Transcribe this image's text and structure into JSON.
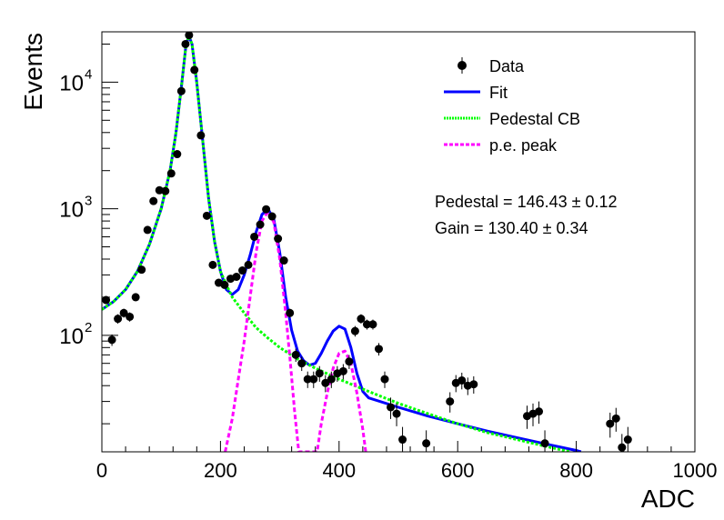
{
  "chart_data": {
    "type": "scatter",
    "title": "",
    "xlabel": "ADC",
    "ylabel": "Events",
    "xlim": [
      0,
      1000
    ],
    "ylim": [
      12,
      25000
    ],
    "yscale": "log",
    "grid": false,
    "legend_position": "top-right",
    "x_ticks": [
      0,
      200,
      400,
      600,
      800,
      1000
    ],
    "y_ticks": [
      {
        "value": 100,
        "base": "10",
        "exp": "2"
      },
      {
        "value": 1000,
        "base": "10",
        "exp": "3"
      },
      {
        "value": 10000,
        "base": "10",
        "exp": "4"
      }
    ],
    "legend": [
      {
        "label": "Data",
        "style": "marker",
        "color": "#000000"
      },
      {
        "label": "Fit",
        "style": "solid",
        "color": "#0000ff"
      },
      {
        "label": "Pedestal CB",
        "style": "dotted",
        "color": "#00ff00"
      },
      {
        "label": "p.e. peak",
        "style": "dashed",
        "color": "#ff00ff"
      }
    ],
    "annotations": [
      "Pedestal = 146.43 ± 0.12",
      "Gain = 130.40 ± 0.34"
    ],
    "series": [
      {
        "name": "Data",
        "color": "#000000",
        "points": [
          [
            7,
            190
          ],
          [
            17,
            92
          ],
          [
            27,
            135
          ],
          [
            37,
            150
          ],
          [
            47,
            140
          ],
          [
            57,
            200
          ],
          [
            67,
            330
          ],
          [
            77,
            680
          ],
          [
            87,
            1150
          ],
          [
            97,
            1400
          ],
          [
            107,
            1380
          ],
          [
            117,
            1900
          ],
          [
            127,
            2700
          ],
          [
            134,
            8500
          ],
          [
            141,
            20000
          ],
          [
            147,
            23500
          ],
          [
            156,
            12500
          ],
          [
            167,
            3800
          ],
          [
            177,
            880
          ],
          [
            187,
            360
          ],
          [
            197,
            260
          ],
          [
            207,
            250
          ],
          [
            217,
            280
          ],
          [
            227,
            290
          ],
          [
            237,
            325
          ],
          [
            247,
            360
          ],
          [
            257,
            600
          ],
          [
            267,
            750
          ],
          [
            277,
            990
          ],
          [
            287,
            870
          ],
          [
            297,
            580
          ],
          [
            307,
            390
          ],
          [
            317,
            150
          ],
          [
            327,
            70
          ],
          [
            337,
            60
          ],
          [
            347,
            45
          ],
          [
            357,
            45
          ],
          [
            367,
            50
          ],
          [
            377,
            42
          ],
          [
            387,
            45
          ],
          [
            397,
            50
          ],
          [
            407,
            52
          ],
          [
            417,
            62
          ],
          [
            427,
            108
          ],
          [
            437,
            135
          ],
          [
            447,
            122
          ],
          [
            457,
            122
          ],
          [
            467,
            78
          ],
          [
            477,
            45
          ],
          [
            487,
            27
          ],
          [
            497,
            24
          ],
          [
            507,
            15
          ],
          [
            547,
            14
          ],
          [
            587,
            30
          ],
          [
            597,
            42
          ],
          [
            607,
            44
          ],
          [
            617,
            40
          ],
          [
            627,
            41
          ],
          [
            717,
            23
          ],
          [
            727,
            24
          ],
          [
            737,
            25
          ],
          [
            747,
            14
          ],
          [
            857,
            20
          ],
          [
            867,
            22
          ],
          [
            877,
            13
          ],
          [
            887,
            15
          ]
        ]
      },
      {
        "name": "Fit",
        "color": "#0000ff",
        "points": [
          [
            0,
            160
          ],
          [
            20,
            185
          ],
          [
            40,
            230
          ],
          [
            60,
            320
          ],
          [
            80,
            520
          ],
          [
            100,
            1000
          ],
          [
            115,
            2000
          ],
          [
            125,
            4000
          ],
          [
            135,
            10000
          ],
          [
            142,
            20000
          ],
          [
            147,
            23000
          ],
          [
            152,
            20000
          ],
          [
            160,
            10000
          ],
          [
            170,
            3500
          ],
          [
            180,
            1200
          ],
          [
            190,
            550
          ],
          [
            200,
            320
          ],
          [
            210,
            230
          ],
          [
            220,
            210
          ],
          [
            230,
            230
          ],
          [
            240,
            300
          ],
          [
            250,
            430
          ],
          [
            260,
            650
          ],
          [
            270,
            900
          ],
          [
            280,
            1000
          ],
          [
            290,
            820
          ],
          [
            300,
            450
          ],
          [
            310,
            200
          ],
          [
            320,
            110
          ],
          [
            330,
            75
          ],
          [
            340,
            63
          ],
          [
            350,
            58
          ],
          [
            360,
            60
          ],
          [
            370,
            72
          ],
          [
            380,
            90
          ],
          [
            390,
            108
          ],
          [
            400,
            118
          ],
          [
            410,
            112
          ],
          [
            420,
            80
          ],
          [
            430,
            50
          ],
          [
            440,
            36
          ],
          [
            450,
            32
          ],
          [
            500,
            27
          ],
          [
            550,
            23
          ],
          [
            600,
            20
          ],
          [
            650,
            17.5
          ],
          [
            700,
            15.5
          ],
          [
            750,
            13.8
          ],
          [
            800,
            12.3
          ],
          [
            808,
            12
          ]
        ]
      },
      {
        "name": "Pedestal CB",
        "color": "#00ff00",
        "points": [
          [
            0,
            160
          ],
          [
            20,
            185
          ],
          [
            40,
            230
          ],
          [
            60,
            320
          ],
          [
            80,
            520
          ],
          [
            100,
            1000
          ],
          [
            115,
            2000
          ],
          [
            125,
            4000
          ],
          [
            135,
            10000
          ],
          [
            142,
            20000
          ],
          [
            147,
            23000
          ],
          [
            152,
            20000
          ],
          [
            160,
            10000
          ],
          [
            170,
            3500
          ],
          [
            180,
            1200
          ],
          [
            190,
            550
          ],
          [
            200,
            320
          ],
          [
            210,
            250
          ],
          [
            220,
            200
          ],
          [
            240,
            150
          ],
          [
            260,
            115
          ],
          [
            280,
            95
          ],
          [
            300,
            80
          ],
          [
            330,
            65
          ],
          [
            360,
            55
          ],
          [
            400,
            45
          ],
          [
            450,
            36
          ],
          [
            500,
            29
          ],
          [
            550,
            24
          ],
          [
            600,
            20
          ],
          [
            650,
            17
          ],
          [
            700,
            15
          ],
          [
            750,
            13.2
          ],
          [
            790,
            12
          ]
        ]
      },
      {
        "name": "p.e. peak",
        "color": "#ff00ff",
        "points": [
          [
            208,
            12
          ],
          [
            220,
            22
          ],
          [
            230,
            45
          ],
          [
            240,
            90
          ],
          [
            250,
            200
          ],
          [
            260,
            450
          ],
          [
            270,
            800
          ],
          [
            280,
            950
          ],
          [
            290,
            780
          ],
          [
            300,
            400
          ],
          [
            310,
            150
          ],
          [
            318,
            60
          ],
          [
            325,
            25
          ],
          [
            332,
            12
          ],
          [
            363,
            12
          ],
          [
            370,
            20
          ],
          [
            380,
            35
          ],
          [
            390,
            55
          ],
          [
            400,
            72
          ],
          [
            410,
            75
          ],
          [
            420,
            60
          ],
          [
            430,
            35
          ],
          [
            440,
            18
          ],
          [
            445,
            12
          ]
        ]
      }
    ]
  }
}
